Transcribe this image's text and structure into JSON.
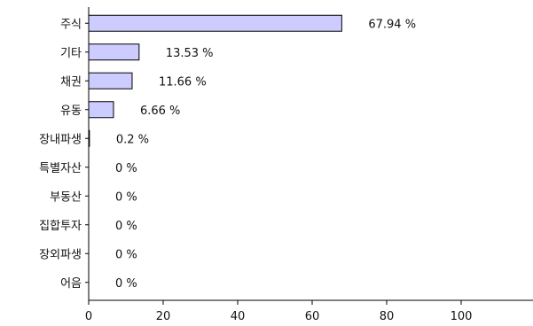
{
  "chart_data": {
    "type": "bar",
    "orientation": "horizontal",
    "categories": [
      "주식",
      "기타",
      "채권",
      "유동",
      "장내파생",
      "특별자산",
      "부동산",
      "집합투자",
      "장외파생",
      "어음"
    ],
    "values": [
      67.94,
      13.53,
      11.66,
      6.66,
      0.2,
      0,
      0,
      0,
      0,
      0
    ],
    "data_labels": [
      "67.94 %",
      "13.53 %",
      "11.66 %",
      "6.66 %",
      "0.2 %",
      "0 %",
      "0 %",
      "0 %",
      "0 %",
      "0 %"
    ],
    "x_ticks": [
      0,
      20,
      40,
      60,
      80,
      100
    ],
    "x_tick_labels": [
      "0",
      "20",
      "40",
      "60",
      "80",
      "100"
    ],
    "xlim": [
      0,
      120
    ],
    "grid": false,
    "legend": "none",
    "colors": {
      "bar_fill": "#ccccff",
      "bar_stroke": "#000000",
      "axis": "#000000"
    }
  }
}
